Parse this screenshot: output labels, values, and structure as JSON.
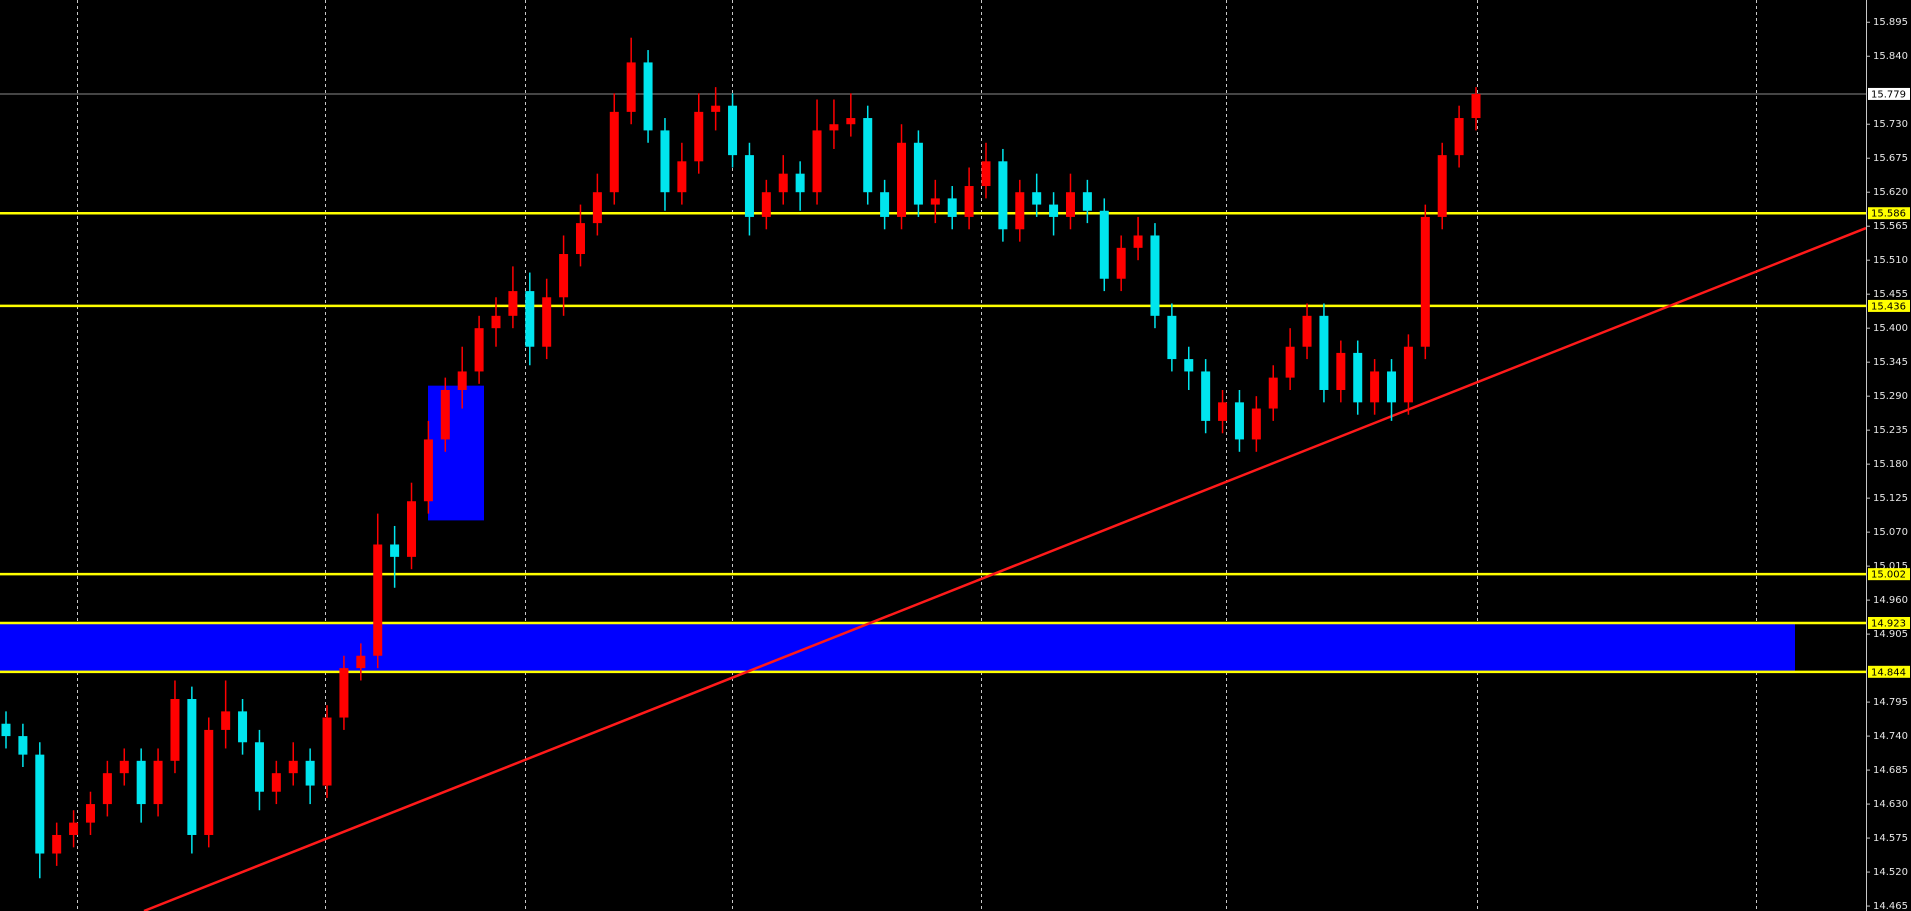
{
  "chart_data": {
    "type": "candlestick",
    "up_color": "#ff0000",
    "down_color": "#00e5ee",
    "grid": true,
    "ylim": [
      14.457,
      15.931
    ],
    "yticks": [
      15.895,
      {
        "value": 15.84,
        "label": "15.840"
      },
      {
        "value": 15.73,
        "label": "15.730"
      },
      15.675,
      {
        "value": 15.62,
        "label": "15.620"
      },
      15.565,
      {
        "value": 15.51,
        "label": "15.510"
      },
      15.455,
      {
        "value": 15.4,
        "label": "15.400"
      },
      15.345,
      {
        "value": 15.29,
        "label": "15.290"
      },
      15.235,
      {
        "value": 15.18,
        "label": "15.180"
      },
      15.125,
      {
        "value": 15.07,
        "label": "15.070"
      },
      15.015,
      {
        "value": 14.96,
        "label": "14.960"
      },
      14.905,
      14.795,
      {
        "value": 14.74,
        "label": "14.740"
      },
      14.685,
      {
        "value": 14.63,
        "label": "14.630"
      },
      14.575,
      {
        "value": 14.52,
        "label": "14.520"
      },
      14.465
    ],
    "series": [
      {
        "open": [
          14.76,
          14.74,
          14.71,
          14.55,
          14.58,
          14.6,
          14.63,
          14.68,
          14.7,
          14.63,
          14.7,
          14.8,
          14.58,
          14.75,
          14.78,
          14.73,
          14.65,
          14.68,
          14.7,
          14.66,
          14.77,
          14.85,
          14.87,
          15.05,
          15.03,
          15.12,
          15.22,
          15.3,
          15.33,
          15.4,
          15.42,
          15.46,
          15.37,
          15.45,
          15.52,
          15.57,
          15.62,
          15.75,
          15.83,
          15.72,
          15.62,
          15.67,
          15.75,
          15.76,
          15.68,
          15.58,
          15.62,
          15.65,
          15.62,
          15.72,
          15.73,
          15.74,
          15.62,
          15.58,
          15.7,
          15.6,
          15.61,
          15.58,
          15.63,
          15.67,
          15.56,
          15.62,
          15.6,
          15.58,
          15.62,
          15.59,
          15.48,
          15.53,
          15.55,
          15.42,
          15.35,
          15.33,
          15.25,
          15.28,
          15.22,
          15.27,
          15.32,
          15.37,
          15.42,
          15.3,
          15.36,
          15.28,
          15.33,
          15.28,
          15.37,
          15.58,
          15.68,
          15.74
        ],
        "high": [
          14.78,
          14.76,
          14.73,
          14.6,
          14.62,
          14.65,
          14.7,
          14.72,
          14.72,
          14.72,
          14.83,
          14.82,
          14.77,
          14.83,
          14.8,
          14.75,
          14.7,
          14.73,
          14.72,
          14.79,
          14.87,
          14.89,
          15.1,
          15.08,
          15.15,
          15.25,
          15.32,
          15.37,
          15.42,
          15.45,
          15.5,
          15.49,
          15.48,
          15.55,
          15.6,
          15.65,
          15.78,
          15.87,
          15.85,
          15.74,
          15.7,
          15.78,
          15.79,
          15.78,
          15.7,
          15.64,
          15.68,
          15.67,
          15.77,
          15.77,
          15.78,
          15.76,
          15.64,
          15.73,
          15.72,
          15.64,
          15.63,
          15.66,
          15.7,
          15.69,
          15.64,
          15.65,
          15.62,
          15.65,
          15.64,
          15.61,
          15.55,
          15.58,
          15.57,
          15.44,
          15.37,
          15.35,
          15.3,
          15.3,
          15.29,
          15.34,
          15.4,
          15.44,
          15.44,
          15.38,
          15.38,
          15.35,
          15.35,
          15.39,
          15.6,
          15.7,
          15.76,
          15.79
        ],
        "low": [
          14.72,
          14.69,
          14.51,
          14.53,
          14.56,
          14.58,
          14.61,
          14.66,
          14.6,
          14.61,
          14.68,
          14.55,
          14.56,
          14.72,
          14.71,
          14.62,
          14.63,
          14.66,
          14.63,
          14.64,
          14.75,
          14.83,
          14.85,
          14.98,
          15.01,
          15.1,
          15.2,
          15.27,
          15.31,
          15.37,
          15.4,
          15.34,
          15.35,
          15.42,
          15.5,
          15.55,
          15.6,
          15.73,
          15.7,
          15.59,
          15.6,
          15.65,
          15.72,
          15.66,
          15.55,
          15.56,
          15.6,
          15.59,
          15.6,
          15.69,
          15.71,
          15.6,
          15.56,
          15.56,
          15.58,
          15.57,
          15.56,
          15.56,
          15.61,
          15.54,
          15.54,
          15.58,
          15.55,
          15.56,
          15.57,
          15.46,
          15.46,
          15.51,
          15.4,
          15.33,
          15.3,
          15.23,
          15.23,
          15.2,
          15.2,
          15.25,
          15.3,
          15.35,
          15.28,
          15.28,
          15.26,
          15.26,
          15.25,
          15.26,
          15.35,
          15.56,
          15.66,
          15.72
        ],
        "close": [
          14.74,
          14.71,
          14.55,
          14.58,
          14.6,
          14.63,
          14.68,
          14.7,
          14.63,
          14.7,
          14.8,
          14.58,
          14.75,
          14.78,
          14.73,
          14.65,
          14.68,
          14.7,
          14.66,
          14.77,
          14.85,
          14.87,
          15.05,
          15.03,
          15.12,
          15.22,
          15.3,
          15.33,
          15.4,
          15.42,
          15.46,
          15.37,
          15.45,
          15.52,
          15.57,
          15.62,
          15.75,
          15.83,
          15.72,
          15.62,
          15.67,
          15.75,
          15.76,
          15.68,
          15.58,
          15.62,
          15.65,
          15.62,
          15.72,
          15.73,
          15.74,
          15.62,
          15.58,
          15.7,
          15.6,
          15.61,
          15.58,
          15.63,
          15.67,
          15.56,
          15.62,
          15.6,
          15.58,
          15.62,
          15.59,
          15.48,
          15.53,
          15.55,
          15.42,
          15.35,
          15.33,
          15.25,
          15.28,
          15.22,
          15.27,
          15.32,
          15.37,
          15.42,
          15.3,
          15.36,
          15.28,
          15.33,
          15.28,
          15.37,
          15.58,
          15.68,
          15.74,
          15.779
        ]
      }
    ],
    "zones": [
      {
        "low": 14.844,
        "high": 14.923,
        "color": "#0000ff"
      },
      {
        "low": 15.089,
        "high": 15.307,
        "color": "#0000ff"
      }
    ],
    "levels": [
      {
        "value": 15.586,
        "color": "#ffff00"
      },
      {
        "value": 15.436,
        "color": "#ffff00"
      },
      {
        "value": 15.002,
        "color": "#ffff00"
      },
      {
        "value": 14.923,
        "color": "#ffff00"
      },
      {
        "value": 14.844,
        "color": "#ffff00"
      }
    ],
    "current_price": {
      "value": 15.779,
      "color": "#8a8a8a"
    },
    "trendline": {
      "start": 14.457,
      "end": 15.562,
      "color": "#ff1a1a"
    }
  }
}
